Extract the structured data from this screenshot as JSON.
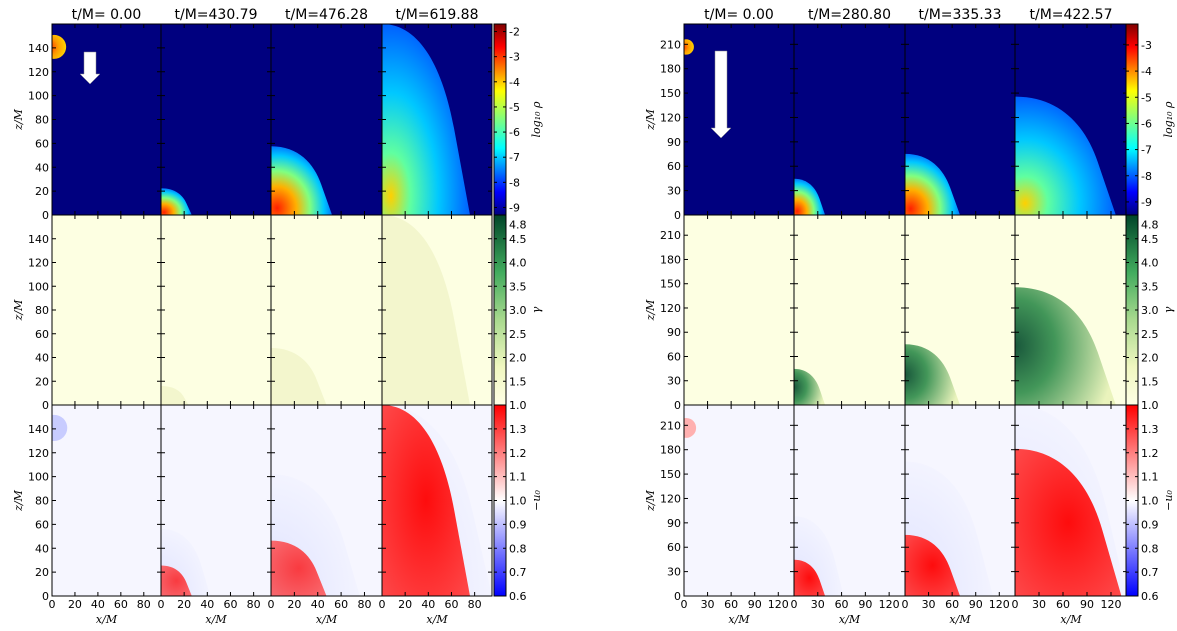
{
  "chart_data": [
    {
      "type": "heatmap",
      "title": "",
      "xlabel": "x/M",
      "ylabel": "z/M",
      "times": [
        "t/M= 0.00",
        "t/M=430.79",
        "t/M=476.28",
        "t/M=619.88"
      ],
      "xlim": [
        0,
        95
      ],
      "x_ticks": [
        0,
        20,
        40,
        60,
        80
      ],
      "x_tick_labels": [
        "0",
        "20",
        "40",
        "60",
        "80"
      ],
      "y_ticks": [
        0,
        20,
        40,
        60,
        80,
        100,
        120,
        140
      ],
      "y_tick_labels": [
        "0",
        "20",
        "40",
        "60",
        "80",
        "100",
        "120",
        "140"
      ],
      "ylim": [
        0,
        160
      ],
      "rows": [
        {
          "quantity": "log10 rho",
          "colorbar_label": "log₁₀ ρ",
          "colormap": "jet",
          "clim": [
            -9.3,
            -1.7
          ],
          "colorbar_ticks": [
            "-2",
            "-3",
            "-4",
            "-5",
            "-6",
            "-7",
            "-8",
            "-9"
          ],
          "arrow": "down"
        },
        {
          "quantity": "gamma",
          "colorbar_label": "γ",
          "colormap": "light-yellow to dark-green",
          "clim": [
            1.0,
            5.0
          ],
          "colorbar_ticks": [
            "4.5",
            "4.0",
            "3.5",
            "3.0",
            "2.5",
            "2.0",
            "1.5",
            "1.0"
          ],
          "colorbar_extra": "4.8"
        },
        {
          "quantity": "-u_0",
          "colorbar_label": "−u₀",
          "colormap": "blue-white-red",
          "clim": [
            0.6,
            1.4
          ],
          "colorbar_ticks": [
            "1.3",
            "1.2",
            "1.1",
            "1.0",
            "0.9",
            "0.8",
            "0.7",
            "0.6"
          ]
        }
      ]
    },
    {
      "type": "heatmap",
      "title": "",
      "xlabel": "x/M",
      "ylabel": "z/M",
      "times": [
        "t/M= 0.00",
        "t/M=280.80",
        "t/M=335.33",
        "t/M=422.57"
      ],
      "xlim": [
        0,
        140
      ],
      "x_ticks": [
        0,
        30,
        60,
        90,
        120
      ],
      "x_tick_labels": [
        "0",
        "30",
        "60",
        "90",
        "120"
      ],
      "y_ticks": [
        0,
        30,
        60,
        90,
        120,
        150,
        180,
        210
      ],
      "y_tick_labels": [
        "0",
        "30",
        "60",
        "90",
        "120",
        "150",
        "180",
        "210"
      ],
      "ylim": [
        0,
        235
      ],
      "rows": [
        {
          "quantity": "log10 rho",
          "colorbar_label": "log₁₀ ρ",
          "colormap": "jet",
          "clim": [
            -9.5,
            -2.2
          ],
          "colorbar_ticks": [
            "-3",
            "-4",
            "-5",
            "-6",
            "-7",
            "-8",
            "-9"
          ],
          "arrow": "down"
        },
        {
          "quantity": "gamma",
          "colorbar_label": "γ",
          "colormap": "light-yellow to dark-green",
          "clim": [
            1.0,
            5.0
          ],
          "colorbar_ticks": [
            "4.5",
            "4.0",
            "3.5",
            "3.0",
            "2.5",
            "2.0",
            "1.5",
            "1.0"
          ],
          "colorbar_extra": "4.8"
        },
        {
          "quantity": "-u_0",
          "colorbar_label": "−u₀",
          "colormap": "blue-white-red",
          "clim": [
            0.6,
            1.4
          ],
          "colorbar_ticks": [
            "1.3",
            "1.2",
            "1.1",
            "1.0",
            "0.9",
            "0.8",
            "0.7",
            "0.6"
          ]
        }
      ]
    }
  ]
}
